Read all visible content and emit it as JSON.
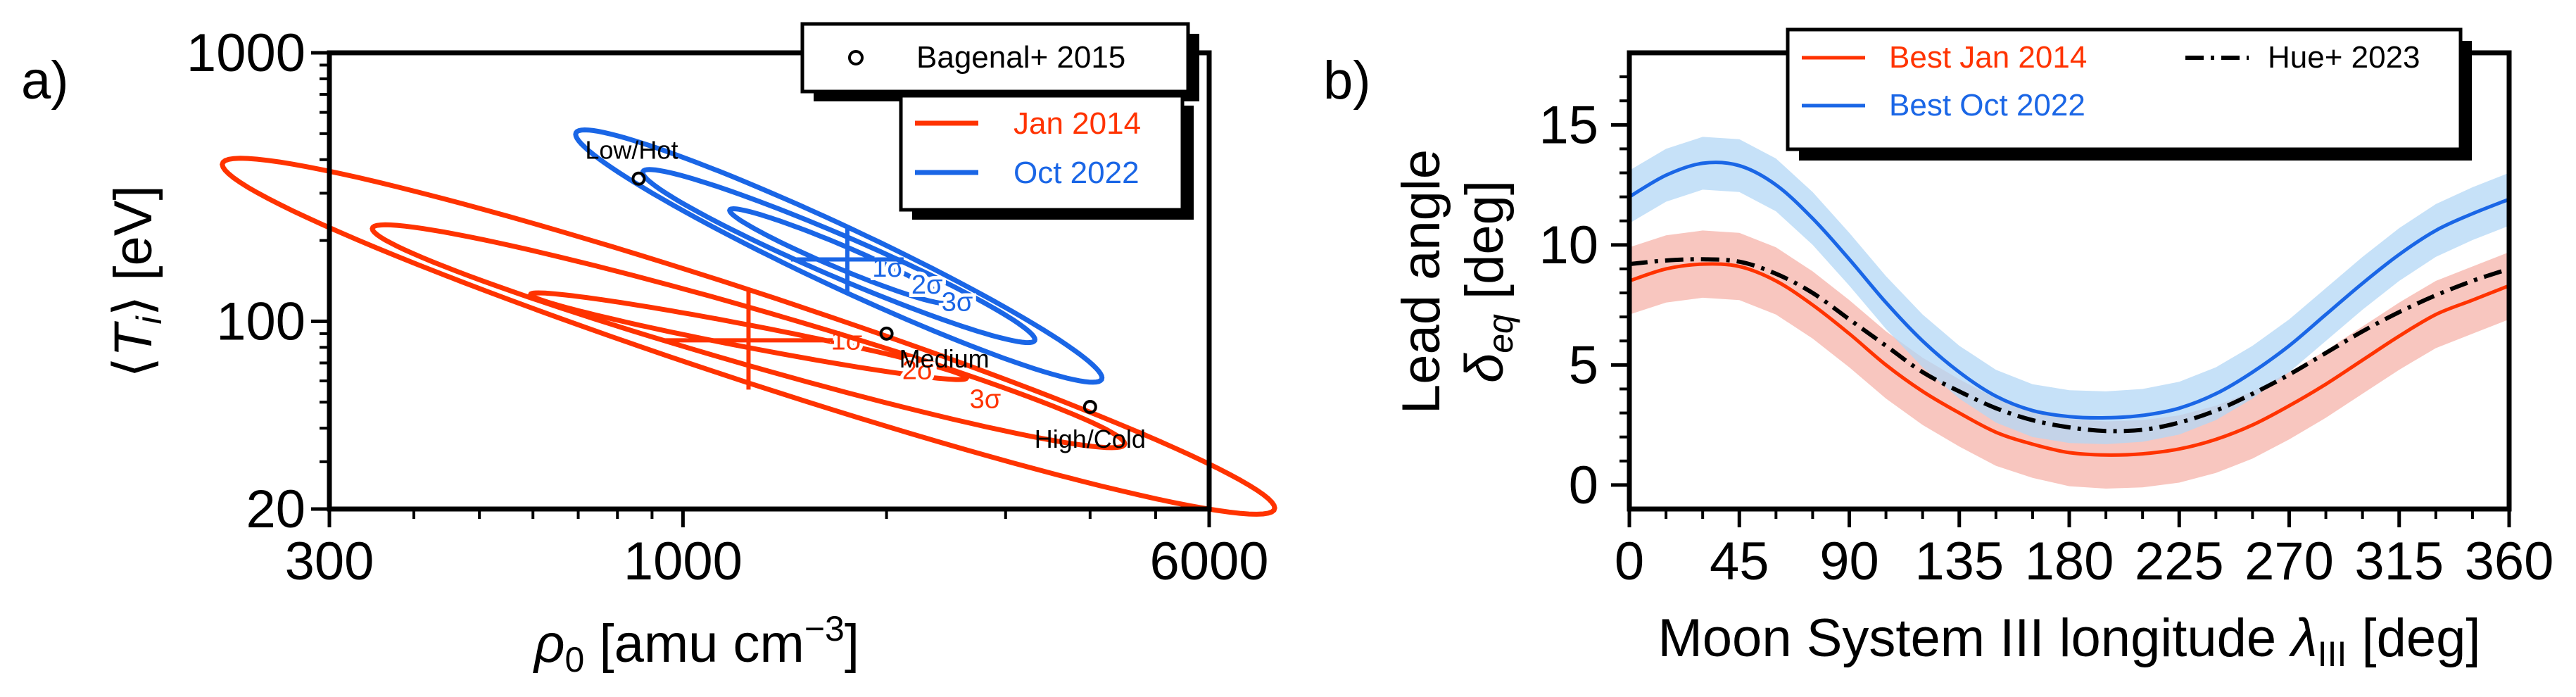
{
  "panel_a": {
    "letter": "a)"
  },
  "panel_b": {
    "letter": "b)"
  },
  "chart_data": [
    {
      "type": "contour",
      "panel": "a)",
      "xlabel": "ρ₀ [amu cm⁻³]",
      "ylabel": "⟨Tᵢ⟩ [eV]",
      "xscale": "log",
      "yscale": "log",
      "xlim": [
        300,
        6000
      ],
      "ylim": [
        20,
        1000
      ],
      "xticks": [
        300,
        1000,
        6000
      ],
      "yticks": [
        20,
        100,
        1000
      ],
      "grid": false,
      "legend": [
        {
          "label": "Bagenal+ 2015",
          "marker": "open-circle",
          "color": "#000000"
        },
        {
          "label": "Jan 2014",
          "color": "#ff3300"
        },
        {
          "label": "Oct 2022",
          "color": "#1a66e6"
        }
      ],
      "series": [
        {
          "name": "Jan 2014",
          "color": "#ff3300",
          "best_fit": {
            "rho": 1250,
            "T": 85
          },
          "contours": [
            {
              "level": "1σ",
              "center_rho": 1250,
              "center_T": 88,
              "ratio": 2.1,
              "Tfactor": 1.45
            },
            {
              "level": "2σ",
              "center_rho": 1250,
              "center_T": 88,
              "ratio": 3.6,
              "Tfactor": 2.6
            },
            {
              "level": "3σ",
              "center_rho": 1250,
              "center_T": 88,
              "ratio": 6.0,
              "Tfactor": 4.6
            }
          ]
        },
        {
          "name": "Oct 2022",
          "color": "#1a66e6",
          "best_fit": {
            "rho": 1750,
            "T": 170
          },
          "contours": [
            {
              "level": "1σ",
              "center_rho": 1700,
              "center_T": 175,
              "ratio": 1.45,
              "Tfactor": 1.5
            },
            {
              "level": "2σ",
              "center_rho": 1700,
              "center_T": 175,
              "ratio": 1.95,
              "Tfactor": 2.1
            },
            {
              "level": "3σ",
              "center_rho": 1700,
              "center_T": 175,
              "ratio": 2.45,
              "Tfactor": 2.95
            }
          ]
        }
      ],
      "reference_points": [
        {
          "label": "Low/Hot",
          "rho": 860,
          "T": 340
        },
        {
          "label": "Medium",
          "rho": 2000,
          "T": 90
        },
        {
          "label": "High/Cold",
          "rho": 4000,
          "T": 48
        }
      ]
    },
    {
      "type": "line",
      "panel": "b)",
      "xlabel": "Moon System III longitude λ_III [deg]",
      "ylabel_line1": "Lead angle",
      "ylabel_line2": "δ_eq [deg]",
      "xlim": [
        0,
        360
      ],
      "ylim": [
        -1,
        18
      ],
      "xticks": [
        0,
        45,
        90,
        135,
        180,
        225,
        270,
        315,
        360
      ],
      "yticks": [
        0,
        5,
        10,
        15
      ],
      "grid": false,
      "legend": [
        {
          "label": "Best Jan 2014",
          "color": "#ff3300",
          "style": "solid"
        },
        {
          "label": "Hue+ 2023",
          "color": "#000000",
          "style": "dashdot"
        },
        {
          "label": "Best Oct 2022",
          "color": "#1a66e6",
          "style": "solid"
        }
      ],
      "x": [
        0,
        15,
        30,
        45,
        60,
        75,
        90,
        105,
        120,
        135,
        150,
        165,
        180,
        195,
        210,
        225,
        240,
        255,
        270,
        285,
        300,
        315,
        330,
        345,
        360
      ],
      "series": [
        {
          "name": "Best Jan 2014",
          "color": "#ff3300",
          "band_color": "#f6b3aa",
          "band_halfwidth": 1.4,
          "values": [
            8.5,
            9.0,
            9.2,
            9.1,
            8.5,
            7.5,
            6.3,
            5.0,
            3.9,
            3.0,
            2.2,
            1.7,
            1.35,
            1.25,
            1.3,
            1.5,
            1.9,
            2.5,
            3.3,
            4.2,
            5.2,
            6.2,
            7.1,
            7.7,
            8.3
          ]
        },
        {
          "name": "Best Oct 2022",
          "color": "#1a66e6",
          "band_color": "#b3d7f5",
          "band_halfwidth": 1.1,
          "values": [
            12.0,
            12.9,
            13.4,
            13.3,
            12.5,
            11.1,
            9.4,
            7.6,
            6.0,
            4.7,
            3.7,
            3.1,
            2.85,
            2.8,
            2.9,
            3.2,
            3.8,
            4.7,
            5.8,
            7.1,
            8.4,
            9.6,
            10.6,
            11.3,
            11.9
          ]
        },
        {
          "name": "Hue+ 2023",
          "color": "#000000",
          "style": "dashdot",
          "values": [
            9.2,
            9.35,
            9.4,
            9.3,
            8.8,
            8.0,
            6.9,
            5.8,
            4.7,
            3.9,
            3.2,
            2.7,
            2.4,
            2.25,
            2.3,
            2.6,
            3.1,
            3.8,
            4.6,
            5.5,
            6.4,
            7.2,
            7.9,
            8.5,
            9.0
          ]
        }
      ]
    }
  ]
}
